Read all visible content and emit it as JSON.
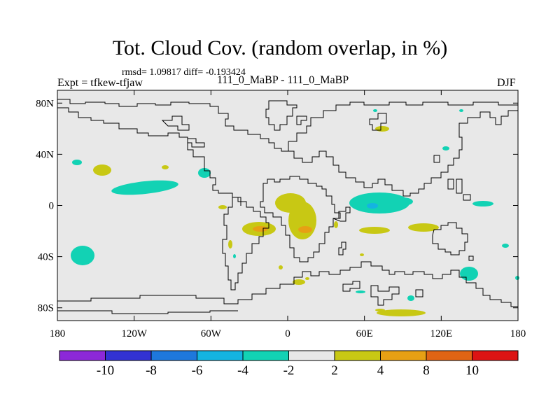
{
  "title": "Tot. Cloud Cov. (random overlap, in %)",
  "stats": "rmsd= 1.09817 diff= -0.193424",
  "experiment": "Expt = tfkew-tfjaw",
  "subtitle": "111_0_MaBP - 111_0_MaBP",
  "season": "DJF",
  "map": {
    "lon_range": [
      -180,
      180
    ],
    "lat_range": [
      -90,
      90
    ],
    "background_color": "#e8e8e8",
    "x_ticks": [
      {
        "lon": -180,
        "label": "180"
      },
      {
        "lon": -120,
        "label": "120W"
      },
      {
        "lon": -60,
        "label": "60W"
      },
      {
        "lon": 0,
        "label": "0"
      },
      {
        "lon": 60,
        "label": "60E"
      },
      {
        "lon": 120,
        "label": "120E"
      },
      {
        "lon": 180,
        "label": "180"
      }
    ],
    "y_ticks": [
      {
        "lat": 80,
        "label": "80N"
      },
      {
        "lat": 40,
        "label": "40N"
      },
      {
        "lat": 0,
        "label": "0"
      },
      {
        "lat": -40,
        "label": "40S"
      },
      {
        "lat": -80,
        "label": "80S"
      }
    ]
  },
  "colorbar": {
    "colors": [
      "#8c28d8",
      "#3232d2",
      "#1e78dc",
      "#14b4e1",
      "#12d2b4",
      "#e8e8e8",
      "#c8c814",
      "#e6a014",
      "#e06414",
      "#dc1414"
    ],
    "labels": [
      "-10",
      "-8",
      "-6",
      "-4",
      "-2",
      "2",
      "4",
      "8",
      "10"
    ]
  }
}
